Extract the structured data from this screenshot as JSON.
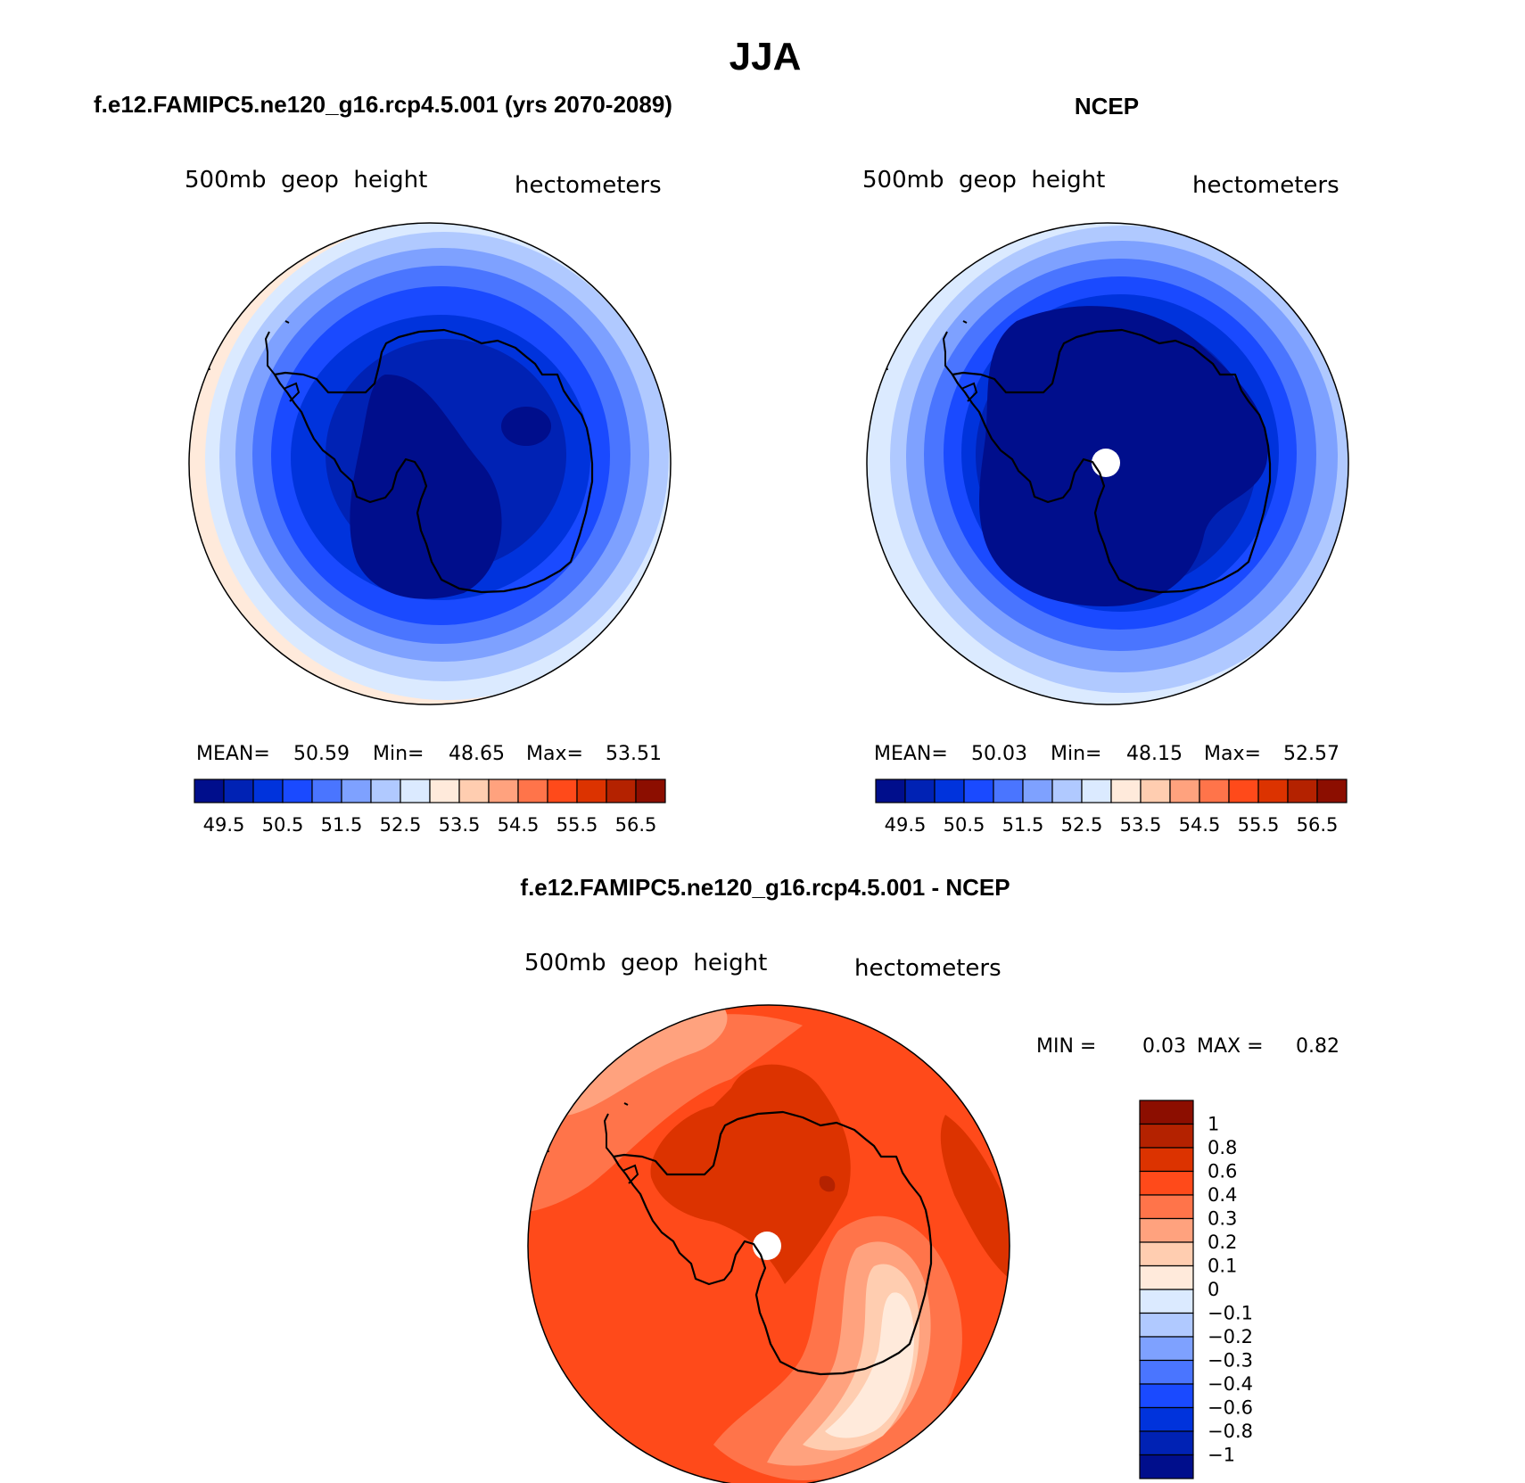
{
  "figure_title": "JJA",
  "colors": {
    "model_scale": [
      "#000e8c",
      "#0022b4",
      "#0033dc",
      "#1a4aff",
      "#4a75ff",
      "#7ea1ff",
      "#b0c9ff",
      "#dbeaff",
      "#ffeadb",
      "#ffcdb0",
      "#ffa27e",
      "#ff744a",
      "#ff4a1a",
      "#dc3300",
      "#b42200",
      "#8c0e00"
    ],
    "diff_scale": [
      "#000e8c",
      "#0022b4",
      "#0033dc",
      "#1a4aff",
      "#4a75ff",
      "#7ea1ff",
      "#b0c9ff",
      "#dbeaff",
      "#ffeadb",
      "#ffcdb0",
      "#ffa27e",
      "#ff744a",
      "#ff4a1a",
      "#dc3300",
      "#b42200",
      "#8c0e00"
    ],
    "coast": "#000000"
  },
  "panels": {
    "model": {
      "title": "f.e12.FAMIPC5.ne120_g16.rcp4.5.001 (yrs 2070-2089)",
      "left_label": "500mb  geop  height",
      "right_label": "hectometers",
      "stats": {
        "mean_label": "MEAN=",
        "mean": "50.59",
        "min_label": "Min=",
        "min": "48.65",
        "max_label": "Max=",
        "max": "53.51"
      },
      "colorbar_ticks": [
        "49.5",
        "50.5",
        "51.5",
        "52.5",
        "53.5",
        "54.5",
        "55.5",
        "56.5"
      ]
    },
    "obs": {
      "title": "NCEP",
      "left_label": "500mb  geop  height",
      "right_label": "hectometers",
      "stats": {
        "mean_label": "MEAN=",
        "mean": "50.03",
        "min_label": "Min=",
        "min": "48.15",
        "max_label": "Max=",
        "max": "52.57"
      },
      "colorbar_ticks": [
        "49.5",
        "50.5",
        "51.5",
        "52.5",
        "53.5",
        "54.5",
        "55.5",
        "56.5"
      ]
    },
    "diff": {
      "title": "f.e12.FAMIPC5.ne120_g16.rcp4.5.001 - NCEP",
      "left_label": "500mb  geop  height",
      "right_label": "hectometers",
      "stats": {
        "min_label": "MIN =",
        "min": "0.03",
        "max_label": "MAX =",
        "max": "0.82"
      },
      "colorbar_ticks": [
        "1",
        "0.8",
        "0.6",
        "0.4",
        "0.3",
        "0.2",
        "0.1",
        "0",
        "−0.1",
        "−0.2",
        "−0.3",
        "−0.4",
        "−0.6",
        "−0.8",
        "−1"
      ]
    }
  }
}
